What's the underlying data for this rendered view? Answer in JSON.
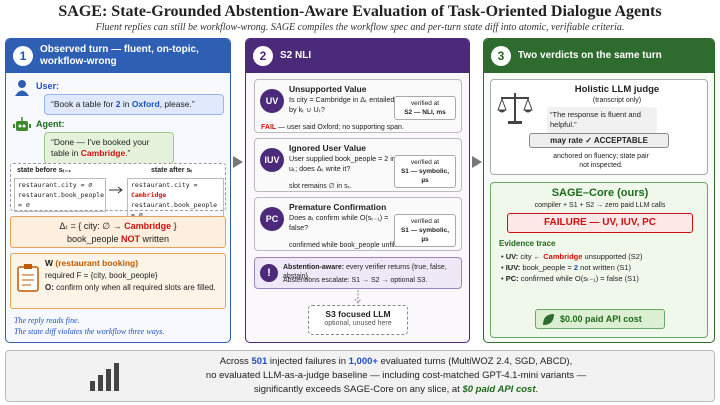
{
  "header": {
    "title": "SAGE: State-Grounded Abstention-Aware Evaluation of Task-Oriented Dialogue Agents",
    "subtitle": "Fluent replies can still be workflow-wrong. SAGE compiles the workflow spec and per-turn state diff into atomic, verifiable criteria."
  },
  "panel1": {
    "number": "1",
    "title": "Observed turn — fluent, on-topic, workflow-wrong",
    "user_label": "User:",
    "user_msg": [
      "“Book a table for ",
      "2",
      " in ",
      "Oxford",
      ", please.”"
    ],
    "agent_label": "Agent:",
    "agent_msg": [
      "“Done — I've booked your table in ",
      "Cambridge",
      ".”"
    ],
    "state_before_label": "state before sₜ₋₁",
    "state_after_label": "state after sₜ",
    "before_lines": [
      "restaurant.city = ∅",
      "restaurant.book_people = ∅"
    ],
    "after_city": [
      "restaurant.city = ",
      "Cambridge"
    ],
    "after_people": "restaurant.book_people = ∅",
    "delta_line1": [
      "Δₜ = { city: ∅ → ",
      "Cambridge",
      " }"
    ],
    "delta_line2": [
      "book_people ",
      "NOT",
      " written"
    ],
    "workflow_name": "W",
    "workflow_domain": "(restaurant booking)",
    "workflow_required": "required F = {city, book_people}",
    "workflow_obligation": [
      "O:",
      " confirm only when all required slots are filled."
    ],
    "footer": [
      "The reply reads fine.",
      "The state diff violates the workflow three ways."
    ]
  },
  "panel2": {
    "number": "2",
    "title": "S2 NLI",
    "cards": [
      {
        "badge": "UV",
        "title": "Unsupported Value",
        "question": "Is city = Cambridge in Δₜ entailed by kₜ ∪ Uₜ?",
        "verdict": [
          "FAIL",
          " — user said Oxford; no supporting span."
        ],
        "verified_label": "verified at",
        "verified_at": "S2 — NLI, ms"
      },
      {
        "badge": "IUV",
        "title": "Ignored User Value",
        "question": "User supplied book_people = 2 in uₜ; does Δₜ write it?",
        "verdict": "slot remains ∅ in sₜ.",
        "verified_label": "verified at",
        "verified_at": "S1 — symbolic, µs"
      },
      {
        "badge": "PC",
        "title": "Premature Confirmation",
        "question": "Does aₜ confirm while O(sₜ₋₁) = false?",
        "verdict": "confirmed while book_people unfilled.",
        "verified_label": "verified at",
        "verified_at": "S1 — symbolic, µs"
      }
    ],
    "abstention_icon": "!",
    "abstention": [
      "Abstention-aware:",
      " every verifier returns {true, false, abstain}."
    ],
    "escalate": "Abstentions escalate: S1 → S2 → optional S3.",
    "s3_title": "S3 focused LLM",
    "s3_note": "optional, unused here"
  },
  "panel3": {
    "number": "3",
    "title": "Two verdicts on the same turn",
    "judge_title": "Holistic LLM judge",
    "judge_sub": "(transcript only)",
    "judge_quote": "“The response is fluent and helpful.”",
    "judge_rating": "may rate ✓ ACCEPTABLE",
    "judge_note": "anchored on fluency; state pair not inspected.",
    "sage_title": "SAGE–Core (ours)",
    "sage_sub": "compiler + S1 + S2 → zero paid LLM calls",
    "sage_verdict": "FAILURE — UV, IUV, PC",
    "trace_title": "Evidence trace",
    "traces": [
      [
        "UV:",
        " city ← ",
        "Cambridge",
        " unsupported (S2)"
      ],
      [
        "IUV:",
        " book_people = ",
        "2",
        " not written (S1)"
      ],
      [
        "PC:",
        " confirmed while O(sₜ₋₁) = false (S1)"
      ]
    ],
    "cost": "$0.00 paid API cost"
  },
  "bottom": {
    "line1": [
      "Across ",
      "501",
      " injected failures in ",
      "1,000+",
      " evaluated turns (MultiWOZ 2.4, SGD, ABCD),"
    ],
    "line2": "no evaluated LLM-as-a-judge baseline — including cost-matched GPT-4.1-mini variants —",
    "line3": [
      "significantly exceeds SAGE-Core on any slice, at ",
      "$0 paid API cost",
      "."
    ]
  }
}
